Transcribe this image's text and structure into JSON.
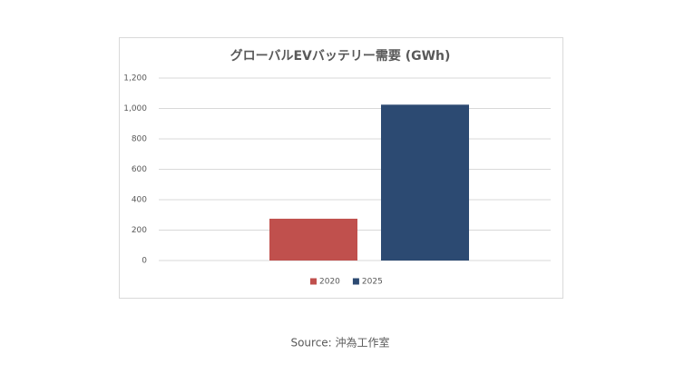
{
  "chart_data": {
    "type": "bar",
    "title": "グローバルEVバッテリー需要 (GWh)",
    "categories": [
      null
    ],
    "series": [
      {
        "name": "2020",
        "color": "#c0504d",
        "values": [
          275
        ]
      },
      {
        "name": "2025",
        "color": "#2c4a72",
        "values": [
          1025
        ]
      }
    ],
    "ylim": [
      0,
      1200
    ],
    "yticks": [
      0,
      200,
      400,
      600,
      800,
      {
        "value": 1000,
        "label": "1,000"
      },
      {
        "value": 1200,
        "label": "1,200"
      }
    ],
    "grid": true,
    "legend": "bottom"
  },
  "source": "Source: 沖為工作室"
}
